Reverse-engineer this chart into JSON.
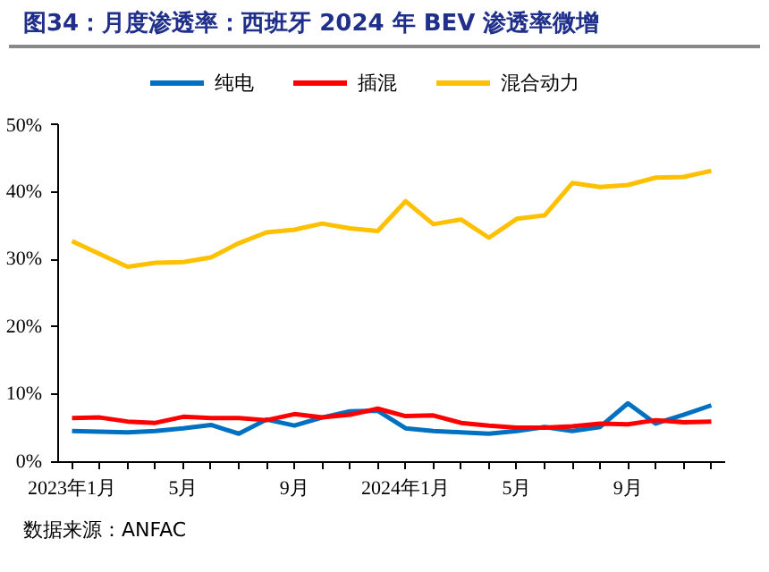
{
  "chart_data": {
    "type": "line",
    "title": "图34：月度渗透率：西班牙 2024 年 BEV 渗透率微增",
    "categories": [
      "2023年1月",
      null,
      null,
      null,
      "5月",
      null,
      null,
      null,
      "9月",
      null,
      null,
      null,
      "2024年1月",
      null,
      null,
      null,
      "5月",
      null,
      null,
      null,
      "9月",
      null,
      null,
      null
    ],
    "series": [
      {
        "name": "纯电",
        "color": "#0070c0",
        "values": [
          4.6,
          4.5,
          4.4,
          4.6,
          5.0,
          5.5,
          4.2,
          6.3,
          5.4,
          6.6,
          7.5,
          7.6,
          5.0,
          4.6,
          4.4,
          4.2,
          4.6,
          5.2,
          4.6,
          5.2,
          8.7,
          5.7,
          7.0,
          8.4
        ]
      },
      {
        "name": "插混",
        "color": "#ff0000",
        "values": [
          6.5,
          6.6,
          6.0,
          5.8,
          6.7,
          6.5,
          6.5,
          6.2,
          7.1,
          6.6,
          7.0,
          7.9,
          6.8,
          6.9,
          5.8,
          5.4,
          5.1,
          5.1,
          5.3,
          5.7,
          5.6,
          6.2,
          5.9,
          6.0
        ]
      },
      {
        "name": "混合动力",
        "color": "#ffc000",
        "values": [
          32.7,
          30.8,
          28.9,
          29.5,
          29.6,
          30.3,
          32.4,
          34.0,
          34.4,
          35.3,
          34.6,
          34.2,
          38.6,
          35.2,
          35.9,
          33.2,
          36.0,
          36.5,
          41.3,
          40.7,
          41.0,
          42.1,
          42.2,
          43.1
        ]
      }
    ],
    "ylim": [
      0,
      50
    ],
    "yticks": [
      {
        "value": 0,
        "label": "0%"
      },
      {
        "value": 10,
        "label": "10%"
      },
      {
        "value": 20,
        "label": "20%"
      },
      {
        "value": 30,
        "label": "30%"
      },
      {
        "value": 40,
        "label": "40%"
      },
      {
        "value": 50,
        "label": "50%"
      }
    ],
    "grid": false,
    "legend": "top",
    "line_style": "solid",
    "marker": "none",
    "annotations": [
      "数据来源：ANFAC"
    ]
  }
}
